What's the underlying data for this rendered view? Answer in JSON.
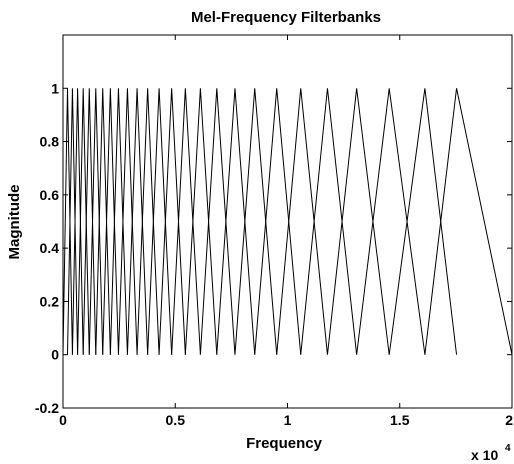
{
  "chart_data": {
    "type": "line",
    "title": "Mel-Frequency Filterbanks",
    "xlabel": "Frequency",
    "ylabel": "Magnitude",
    "x_multiplier_label": "x 10",
    "x_multiplier_exponent": "4",
    "xlim": [
      0,
      20000
    ],
    "ylim": [
      -0.2,
      1.2
    ],
    "xticks": [
      0,
      5000,
      10000,
      15000,
      20000
    ],
    "xtick_labels": [
      "0",
      "0.5",
      "1",
      "1.5",
      "2"
    ],
    "yticks": [
      -0.2,
      0,
      0.2,
      0.4,
      0.6,
      0.8,
      1
    ],
    "ytick_labels": [
      "-0.2",
      "0",
      "0.2",
      "0.4",
      "0.6",
      "0.8",
      "1"
    ],
    "grid": false,
    "filter_edge_frequencies": [
      0,
      200,
      420,
      650,
      900,
      1170,
      1460,
      1770,
      2110,
      2470,
      2870,
      3300,
      3770,
      4280,
      4840,
      5450,
      6120,
      6850,
      7660,
      8540,
      9520,
      10590,
      11780,
      13080,
      14530,
      16120,
      17530,
      20000
    ],
    "filter_peak_value": 1
  }
}
